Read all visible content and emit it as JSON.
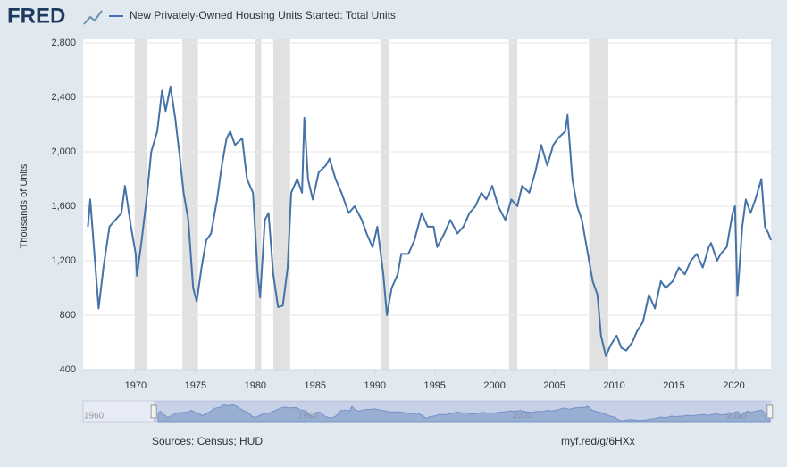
{
  "logo": "FRED",
  "chart_data": {
    "type": "line",
    "source": "Sources: Census; HUD",
    "link": "myf.red/g/6HXx",
    "ylabel": "Thousands of Units",
    "x": [
      1966.0,
      1966.2,
      1966.5,
      1966.9,
      1967.3,
      1967.8,
      1968.3,
      1968.8,
      1969.1,
      1969.6,
      1970.0,
      1970.1,
      1970.5,
      1970.9,
      1971.3,
      1971.8,
      1972.2,
      1972.5,
      1972.9,
      1973.3,
      1973.7,
      1974.0,
      1974.4,
      1974.8,
      1975.1,
      1975.5,
      1975.9,
      1976.3,
      1976.8,
      1977.2,
      1977.6,
      1977.9,
      1978.3,
      1978.9,
      1979.3,
      1979.8,
      1980.2,
      1980.4,
      1980.8,
      1981.1,
      1981.5,
      1981.9,
      1982.3,
      1982.7,
      1983.0,
      1983.5,
      1983.9,
      1984.1,
      1984.4,
      1984.8,
      1985.3,
      1985.9,
      1986.2,
      1986.7,
      1987.2,
      1987.8,
      1988.3,
      1988.9,
      1989.3,
      1989.8,
      1990.2,
      1990.7,
      1991.0,
      1991.4,
      1991.9,
      1992.2,
      1992.8,
      1993.3,
      1993.9,
      1994.4,
      1994.9,
      1995.2,
      1995.8,
      1996.3,
      1996.9,
      1997.4,
      1997.9,
      1998.4,
      1998.9,
      1999.3,
      1999.8,
      2000.3,
      2000.9,
      2001.4,
      2001.9,
      2002.3,
      2002.9,
      2003.4,
      2003.9,
      2004.4,
      2004.9,
      2005.3,
      2005.9,
      2006.1,
      2006.5,
      2006.9,
      2007.3,
      2007.8,
      2008.2,
      2008.6,
      2008.9,
      2009.3,
      2009.7,
      2010.2,
      2010.6,
      2011.0,
      2011.5,
      2011.9,
      2012.4,
      2012.9,
      2013.4,
      2013.9,
      2014.3,
      2014.9,
      2015.4,
      2015.9,
      2016.4,
      2016.9,
      2017.4,
      2017.9,
      2018.1,
      2018.6,
      2018.9,
      2019.4,
      2019.9,
      2020.1,
      2020.3,
      2020.7,
      2021.0,
      2021.4,
      2021.8,
      2022.3,
      2022.6,
      2022.9,
      2023.1
    ],
    "series": [
      {
        "name": "New Privately-Owned Housing Units Started: Total Units",
        "color": "#4572a7",
        "values": [
          1450,
          1650,
          1300,
          850,
          1150,
          1450,
          1500,
          1550,
          1750,
          1450,
          1250,
          1090,
          1350,
          1650,
          2000,
          2150,
          2450,
          2300,
          2480,
          2250,
          1950,
          1700,
          1500,
          1000,
          900,
          1150,
          1350,
          1400,
          1650,
          1900,
          2100,
          2150,
          2050,
          2100,
          1800,
          1700,
          1100,
          930,
          1500,
          1550,
          1100,
          860,
          870,
          1150,
          1700,
          1800,
          1700,
          2250,
          1800,
          1650,
          1850,
          1900,
          1950,
          1800,
          1700,
          1550,
          1600,
          1500,
          1400,
          1300,
          1450,
          1100,
          800,
          1000,
          1100,
          1250,
          1250,
          1350,
          1550,
          1450,
          1450,
          1300,
          1400,
          1500,
          1400,
          1450,
          1550,
          1600,
          1700,
          1650,
          1750,
          1600,
          1500,
          1650,
          1600,
          1750,
          1700,
          1850,
          2050,
          1900,
          2050,
          2100,
          2150,
          2270,
          1800,
          1600,
          1500,
          1250,
          1050,
          950,
          650,
          500,
          580,
          650,
          560,
          540,
          600,
          680,
          750,
          950,
          850,
          1050,
          1000,
          1050,
          1150,
          1100,
          1200,
          1250,
          1150,
          1300,
          1330,
          1200,
          1250,
          1300,
          1550,
          1600,
          940,
          1450,
          1650,
          1550,
          1650,
          1800,
          1450,
          1400,
          1350
        ]
      }
    ],
    "recessions": [
      [
        1969.9,
        1970.9
      ],
      [
        1973.9,
        1975.2
      ],
      [
        1980.0,
        1980.5
      ],
      [
        1981.5,
        1982.9
      ],
      [
        1990.5,
        1991.2
      ],
      [
        2001.2,
        2001.9
      ],
      [
        2007.9,
        2009.5
      ],
      [
        2020.1,
        2020.3
      ]
    ],
    "xlim": [
      1965.6,
      2023.1
    ],
    "xticks": [
      1970,
      1975,
      1980,
      1985,
      1990,
      1995,
      2000,
      2005,
      2010,
      2015,
      2020
    ],
    "ylim": [
      400,
      2800
    ],
    "yticks": [
      {
        "value": 400,
        "label": "400"
      },
      {
        "value": 800,
        "label": "800"
      },
      {
        "value": 1200,
        "label": "1,200"
      },
      {
        "value": 1600,
        "label": "1,600"
      },
      {
        "value": 2000,
        "label": "2,000"
      },
      {
        "value": 2400,
        "label": "2,400"
      },
      {
        "value": 2800,
        "label": "2,800"
      }
    ],
    "grid": true,
    "navigator_xlim": [
      1959,
      2023.2
    ],
    "navigator_ticks": [
      1960,
      1980,
      2000,
      2020
    ]
  }
}
